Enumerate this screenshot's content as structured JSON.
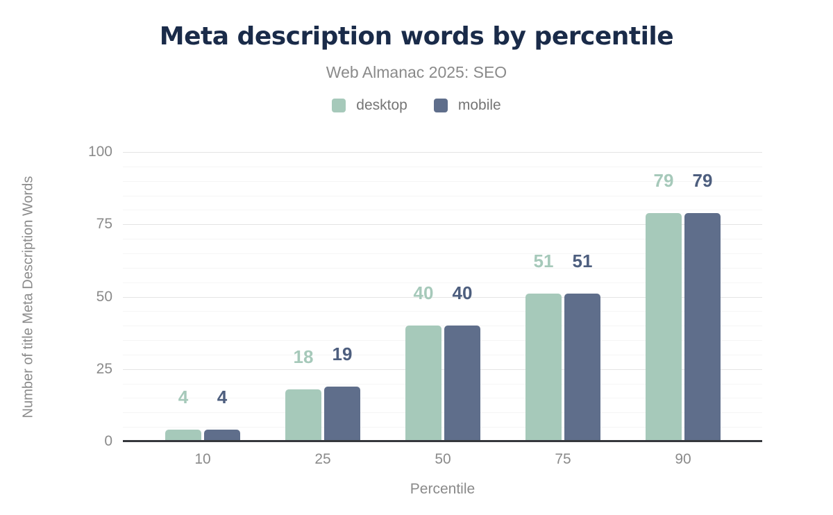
{
  "header": {
    "title": "Meta description words by percentile",
    "subtitle": "Web Almanac 2025: SEO"
  },
  "legend": {
    "items": [
      {
        "label": "desktop",
        "color": "#a6c9ba"
      },
      {
        "label": "mobile",
        "color": "#5f6e8b"
      }
    ]
  },
  "chart_data": {
    "type": "bar",
    "title": "Meta description words by percentile",
    "subtitle": "Web Almanac 2025: SEO",
    "categories": [
      "10",
      "25",
      "50",
      "75",
      "90"
    ],
    "series": [
      {
        "name": "desktop",
        "color": "#a6c9ba",
        "label_color": "#a6c9ba",
        "values": [
          4,
          18,
          40,
          51,
          79
        ]
      },
      {
        "name": "mobile",
        "color": "#5f6e8b",
        "label_color": "#4d5e7e",
        "values": [
          4,
          19,
          40,
          51,
          79
        ]
      }
    ],
    "xlabel": "Percentile",
    "ylabel": "Number of title Meta Description Words",
    "ylim": [
      0,
      100
    ],
    "yticks": [
      0,
      25,
      50,
      75,
      100
    ],
    "minor_grid_step": 5,
    "grid": "horizontal",
    "legend_position": "top",
    "value_labels": true
  },
  "colors": {
    "title": "#1a2b49",
    "subtitle": "#8a8a8a",
    "axis_text": "#8a8a8a",
    "legend_text": "#757575",
    "axis_line": "#35373c",
    "major_grid": "#e4e4e4",
    "minor_grid": "#f5f5f5"
  }
}
